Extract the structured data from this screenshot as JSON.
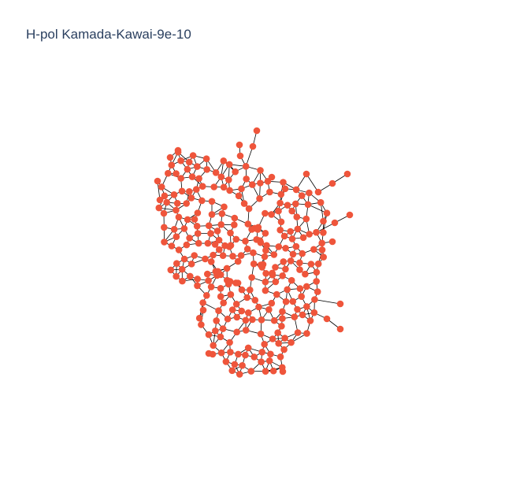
{
  "title": "H-pol Kamada-Kawai-9e-10",
  "colors": {
    "background": "#ffffff",
    "node": "#ef553b",
    "edge": "#000000",
    "title": "#2a3f5f"
  },
  "graph": {
    "layout": "kamada-kawai",
    "node_count": 300,
    "seed": 910
  }
}
